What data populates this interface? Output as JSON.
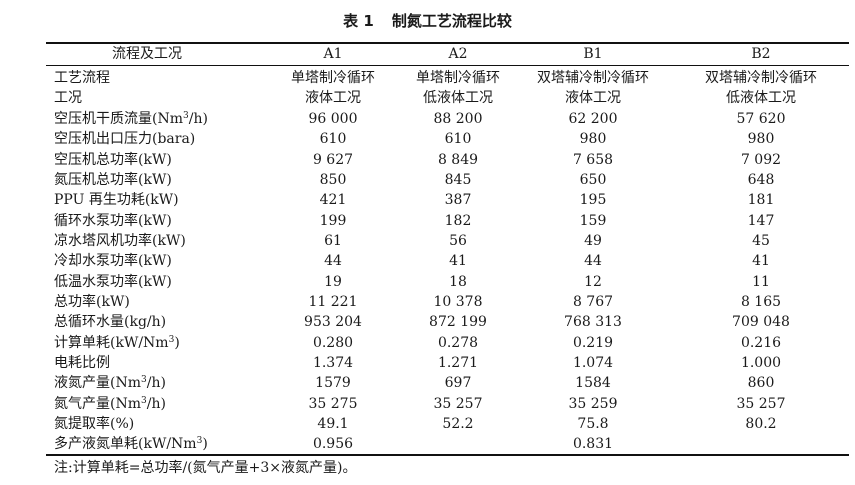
{
  "table": {
    "number": "表 1",
    "title": "制氮工艺流程比较",
    "header": {
      "label": "流程及工况",
      "cols": [
        "A1",
        "A2",
        "B1",
        "B2"
      ]
    },
    "process_label": "工艺流程",
    "process": [
      "单塔制冷循环",
      "单塔制冷循环",
      "双塔辅冷制冷循环",
      "双塔辅冷制冷循环"
    ],
    "condition_label": "工况",
    "condition": [
      "液体工况",
      "低液体工况",
      "液体工况",
      "低液体工况"
    ],
    "rows": [
      {
        "label": "空压机干质流量(Nm³/h)",
        "values": [
          "96 000",
          "88 200",
          "62 200",
          "57 620"
        ]
      },
      {
        "label": "空压机出口压力(bara)",
        "values": [
          "610",
          "610",
          "980",
          "980"
        ]
      },
      {
        "label": "空压机总功率(kW)",
        "values": [
          "9 627",
          "8 849",
          "7 658",
          "7 092"
        ]
      },
      {
        "label": "氮压机总功率(kW)",
        "values": [
          "850",
          "845",
          "650",
          "648"
        ]
      },
      {
        "label": "PPU 再生功耗(kW)",
        "values": [
          "421",
          "387",
          "195",
          "181"
        ]
      },
      {
        "label": "循环水泵功率(kW)",
        "values": [
          "199",
          "182",
          "159",
          "147"
        ]
      },
      {
        "label": "凉水塔风机功率(kW)",
        "values": [
          "61",
          "56",
          "49",
          "45"
        ]
      },
      {
        "label": "冷却水泵功率(kW)",
        "values": [
          "44",
          "41",
          "44",
          "41"
        ]
      },
      {
        "label": "低温水泵功率(kW)",
        "values": [
          "19",
          "18",
          "12",
          "11"
        ]
      },
      {
        "label": "总功率(kW)",
        "values": [
          "11 221",
          "10 378",
          "8 767",
          "8 165"
        ]
      },
      {
        "label": "总循环水量(kg/h)",
        "values": [
          "953 204",
          "872 199",
          "768 313",
          "709 048"
        ]
      },
      {
        "label": "计算单耗(kW/Nm³)",
        "values": [
          "0.280",
          "0.278",
          "0.219",
          "0.216"
        ]
      },
      {
        "label": "电耗比例",
        "values": [
          "1.374",
          "1.271",
          "1.074",
          "1.000"
        ]
      },
      {
        "label": "液氮产量(Nm³/h)",
        "values": [
          "1579",
          "697",
          "1584",
          "860"
        ]
      },
      {
        "label": "氮气产量(Nm³/h)",
        "values": [
          "35 275",
          "35 257",
          "35 259",
          "35 257"
        ]
      },
      {
        "label": "氮提取率(%)",
        "values": [
          "49.1",
          "52.2",
          "75.8",
          "80.2"
        ]
      },
      {
        "label": "多产液氮单耗(kW/Nm³)",
        "values": [
          "0.956",
          "",
          "0.831",
          ""
        ]
      }
    ],
    "note": "注:计算单耗=总功率/(氮气产量+3×液氮产量)。"
  }
}
